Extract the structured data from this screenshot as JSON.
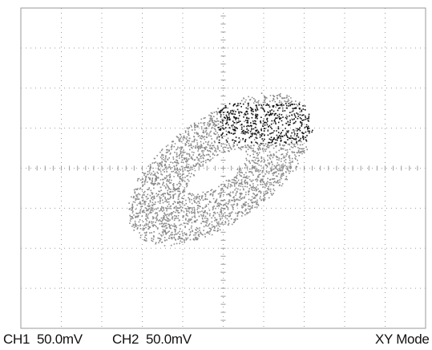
{
  "scope": {
    "ch1": "CH1",
    "ch1_scale": "50.0mV",
    "ch2": "CH2",
    "ch2_scale": "50.0mV",
    "mode": "XY Mode"
  },
  "colors": {
    "background": "#ffffff",
    "graticule": "#9a9a9a",
    "trace_gray": "#8a8a8a",
    "trace_dark": "#111111"
  },
  "icons": {
    "none": "none"
  }
}
